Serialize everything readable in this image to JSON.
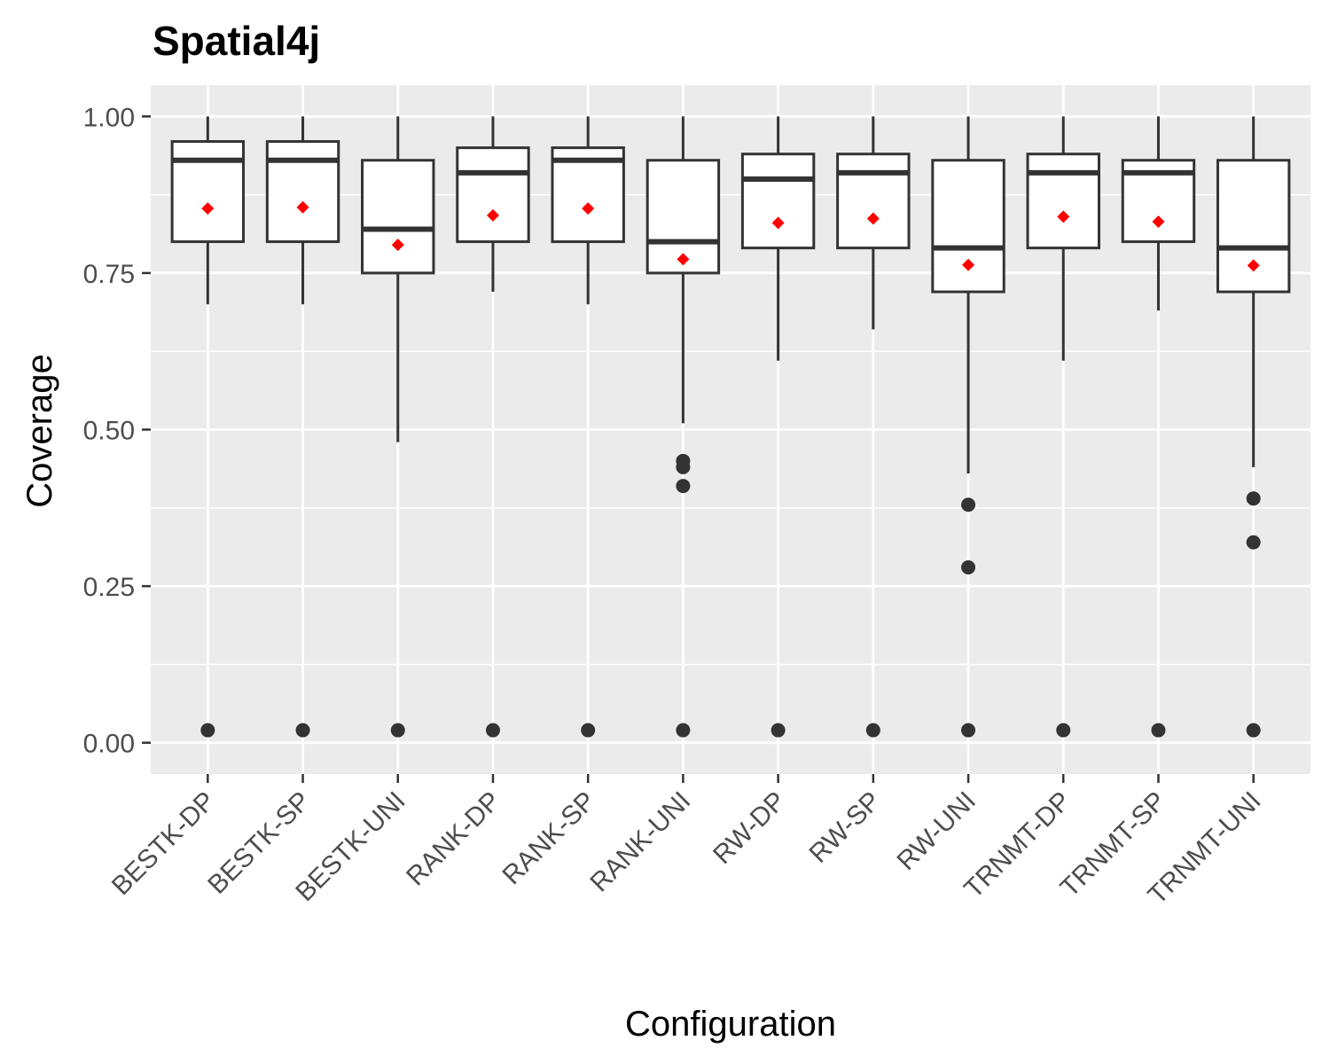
{
  "chart_data": {
    "type": "box",
    "title": "Spatial4j",
    "xlabel": "Configuration",
    "ylabel": "Coverage",
    "ylim": [
      -0.05,
      1.05
    ],
    "yticks": [
      "0.00",
      "0.25",
      "0.50",
      "0.75",
      "1.00"
    ],
    "ytick_values": [
      0,
      0.25,
      0.5,
      0.75,
      1.0
    ],
    "grid": true,
    "panel_background": "#ebebeb",
    "grid_color": "#ffffff",
    "box_stroke": "#333333",
    "mean_color": "#ff0000",
    "categories": [
      "BESTK-DP",
      "BESTK-SP",
      "BESTK-UNI",
      "RANK-DP",
      "RANK-SP",
      "RANK-UNI",
      "RW-DP",
      "RW-SP",
      "RW-UNI",
      "TRNMT-DP",
      "TRNMT-SP",
      "TRNMT-UNI"
    ],
    "boxes": [
      {
        "category": "BESTK-DP",
        "whisker_low": 0.7,
        "q1": 0.8,
        "median": 0.93,
        "q3": 0.96,
        "whisker_high": 1.0,
        "mean": 0.853,
        "outliers": [
          0.02
        ]
      },
      {
        "category": "BESTK-SP",
        "whisker_low": 0.7,
        "q1": 0.8,
        "median": 0.93,
        "q3": 0.96,
        "whisker_high": 1.0,
        "mean": 0.855,
        "outliers": [
          0.02
        ]
      },
      {
        "category": "BESTK-UNI",
        "whisker_low": 0.48,
        "q1": 0.75,
        "median": 0.82,
        "q3": 0.93,
        "whisker_high": 1.0,
        "mean": 0.795,
        "outliers": [
          0.02
        ]
      },
      {
        "category": "RANK-DP",
        "whisker_low": 0.72,
        "q1": 0.8,
        "median": 0.91,
        "q3": 0.95,
        "whisker_high": 1.0,
        "mean": 0.842,
        "outliers": [
          0.02
        ]
      },
      {
        "category": "RANK-SP",
        "whisker_low": 0.7,
        "q1": 0.8,
        "median": 0.93,
        "q3": 0.95,
        "whisker_high": 1.0,
        "mean": 0.853,
        "outliers": [
          0.02
        ]
      },
      {
        "category": "RANK-UNI",
        "whisker_low": 0.51,
        "q1": 0.75,
        "median": 0.8,
        "q3": 0.93,
        "whisker_high": 1.0,
        "mean": 0.772,
        "outliers": [
          0.45,
          0.44,
          0.41,
          0.02
        ]
      },
      {
        "category": "RW-DP",
        "whisker_low": 0.61,
        "q1": 0.79,
        "median": 0.9,
        "q3": 0.94,
        "whisker_high": 1.0,
        "mean": 0.83,
        "outliers": [
          0.02
        ]
      },
      {
        "category": "RW-SP",
        "whisker_low": 0.66,
        "q1": 0.79,
        "median": 0.91,
        "q3": 0.94,
        "whisker_high": 1.0,
        "mean": 0.837,
        "outliers": [
          0.02
        ]
      },
      {
        "category": "RW-UNI",
        "whisker_low": 0.43,
        "q1": 0.72,
        "median": 0.79,
        "q3": 0.93,
        "whisker_high": 1.0,
        "mean": 0.763,
        "outliers": [
          0.38,
          0.28,
          0.02
        ]
      },
      {
        "category": "TRNMT-DP",
        "whisker_low": 0.61,
        "q1": 0.79,
        "median": 0.91,
        "q3": 0.94,
        "whisker_high": 1.0,
        "mean": 0.84,
        "outliers": [
          0.02
        ]
      },
      {
        "category": "TRNMT-SP",
        "whisker_low": 0.69,
        "q1": 0.8,
        "median": 0.91,
        "q3": 0.93,
        "whisker_high": 1.0,
        "mean": 0.832,
        "outliers": [
          0.02
        ]
      },
      {
        "category": "TRNMT-UNI",
        "whisker_low": 0.44,
        "q1": 0.72,
        "median": 0.79,
        "q3": 0.93,
        "whisker_high": 1.0,
        "mean": 0.762,
        "outliers": [
          0.39,
          0.32,
          0.02
        ]
      }
    ]
  }
}
